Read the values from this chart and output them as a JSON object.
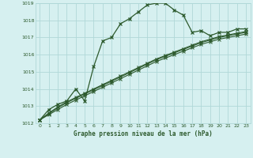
{
  "title": "Graphe pression niveau de la mer (hPa)",
  "bg_color": "#d6f0f0",
  "grid_color": "#b0d8d8",
  "line_color": "#2d5a2d",
  "xlim": [
    -0.5,
    23.5
  ],
  "ylim": [
    1012,
    1019
  ],
  "yticks": [
    1012,
    1013,
    1014,
    1015,
    1016,
    1017,
    1018,
    1019
  ],
  "xticks": [
    0,
    1,
    2,
    3,
    4,
    5,
    6,
    7,
    8,
    9,
    10,
    11,
    12,
    13,
    14,
    15,
    16,
    17,
    18,
    19,
    20,
    21,
    22,
    23
  ],
  "line1_x": [
    0,
    1,
    2,
    3,
    4,
    5,
    6,
    7,
    8,
    9,
    10,
    11,
    12,
    13,
    14,
    15,
    16,
    17,
    18,
    19,
    20,
    21,
    22,
    23
  ],
  "line1_y": [
    1012.2,
    1012.8,
    1013.1,
    1013.3,
    1014.0,
    1013.3,
    1015.3,
    1016.8,
    1017.0,
    1017.8,
    1018.1,
    1018.5,
    1018.9,
    1019.0,
    1019.0,
    1018.6,
    1018.3,
    1017.3,
    1017.4,
    1017.1,
    1017.3,
    1017.3,
    1017.5,
    1017.5
  ],
  "line2_x": [
    0,
    1,
    2,
    3,
    4,
    5,
    6,
    7,
    8,
    9,
    10,
    11,
    12,
    13,
    14,
    15,
    16,
    17,
    18,
    19,
    20,
    21,
    22,
    23
  ],
  "line2_y": [
    1012.2,
    1012.5,
    1012.8,
    1013.1,
    1013.35,
    1013.6,
    1013.85,
    1014.1,
    1014.35,
    1014.6,
    1014.85,
    1015.1,
    1015.35,
    1015.6,
    1015.8,
    1016.0,
    1016.2,
    1016.4,
    1016.6,
    1016.75,
    1016.9,
    1017.0,
    1017.1,
    1017.2
  ],
  "line3_x": [
    0,
    1,
    2,
    3,
    4,
    5,
    6,
    7,
    8,
    9,
    10,
    11,
    12,
    13,
    14,
    15,
    16,
    17,
    18,
    19,
    20,
    21,
    22,
    23
  ],
  "line3_y": [
    1012.2,
    1012.55,
    1012.9,
    1013.2,
    1013.45,
    1013.7,
    1013.95,
    1014.2,
    1014.45,
    1014.7,
    1014.95,
    1015.2,
    1015.45,
    1015.7,
    1015.9,
    1016.1,
    1016.3,
    1016.5,
    1016.7,
    1016.85,
    1017.0,
    1017.1,
    1017.2,
    1017.3
  ],
  "line4_x": [
    0,
    1,
    2,
    3,
    4,
    5,
    6,
    7,
    8,
    9,
    10,
    11,
    12,
    13,
    14,
    15,
    16,
    17,
    18,
    19,
    20,
    21,
    22,
    23
  ],
  "line4_y": [
    1012.2,
    1012.6,
    1012.95,
    1013.25,
    1013.5,
    1013.75,
    1014.0,
    1014.25,
    1014.5,
    1014.75,
    1015.0,
    1015.25,
    1015.5,
    1015.75,
    1015.95,
    1016.15,
    1016.35,
    1016.55,
    1016.75,
    1016.9,
    1017.05,
    1017.15,
    1017.25,
    1017.35
  ]
}
